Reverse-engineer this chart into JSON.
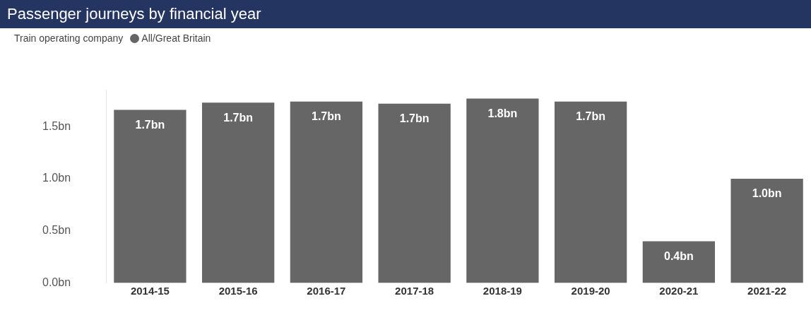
{
  "chart_data": {
    "type": "bar",
    "title": "Passenger journeys by financial year",
    "legend_title": "Train operating company",
    "legend": "top left",
    "grid": false,
    "categories": [
      "2014-15",
      "2015-16",
      "2016-17",
      "2017-18",
      "2018-19",
      "2019-20",
      "2020-21",
      "2021-22"
    ],
    "series": [
      {
        "name": "All/Great Britain",
        "color": "#666666",
        "values": [
          1.66,
          1.73,
          1.74,
          1.72,
          1.77,
          1.74,
          0.4,
          1.0
        ],
        "value_labels": [
          "1.7bn",
          "1.7bn",
          "1.7bn",
          "1.7bn",
          "1.8bn",
          "1.7bn",
          "0.4bn",
          "1.0bn"
        ]
      }
    ],
    "ylim": [
      0,
      1.85
    ],
    "yticks": [
      {
        "value": 0,
        "label": "0.0bn"
      },
      {
        "value": 0.5,
        "label": "0.5bn"
      },
      {
        "value": 1,
        "label": "1.0bn"
      },
      {
        "value": 1.5,
        "label": "1.5bn"
      }
    ]
  }
}
